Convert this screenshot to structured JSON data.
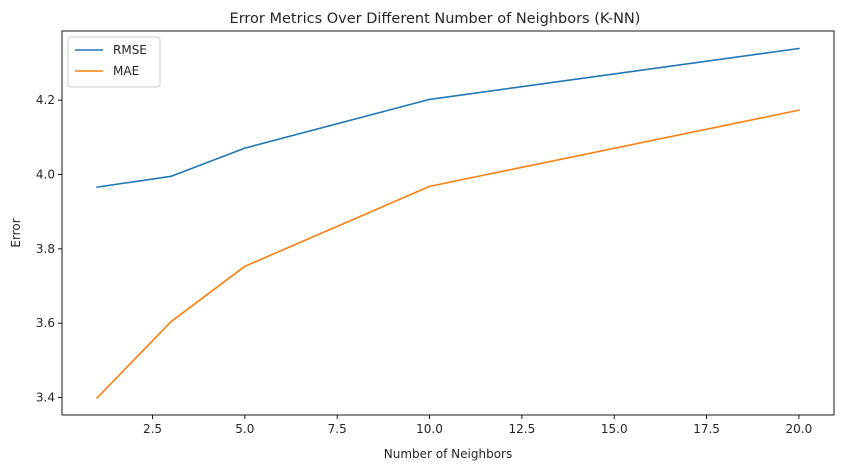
{
  "chart_data": {
    "type": "line",
    "title": "Error Metrics Over Different Number of Neighbors (K-NN)",
    "xlabel": "Number of Neighbors",
    "ylabel": "Error",
    "x": [
      1,
      3,
      5,
      10,
      20
    ],
    "series": [
      {
        "name": "RMSE",
        "color": "#1f77b4",
        "values": [
          3.966,
          3.995,
          4.071,
          4.202,
          4.339
        ]
      },
      {
        "name": "MAE",
        "color": "#ff7f0e",
        "values": [
          3.399,
          3.604,
          3.753,
          3.968,
          4.173
        ]
      }
    ],
    "xlim": [
      0.05,
      20.95
    ],
    "ylim": [
      3.353,
      4.386
    ],
    "xticks": [
      2.5,
      5.0,
      7.5,
      10.0,
      12.5,
      15.0,
      17.5,
      20.0
    ],
    "xtick_labels": [
      "2.5",
      "5.0",
      "7.5",
      "10.0",
      "12.5",
      "15.0",
      "17.5",
      "20.0"
    ],
    "yticks": [
      3.4,
      3.6,
      3.8,
      4.0,
      4.2
    ],
    "ytick_labels": [
      "3.4",
      "3.6",
      "3.8",
      "4.0",
      "4.2"
    ],
    "legend_position": "upper-left",
    "grid": false
  }
}
